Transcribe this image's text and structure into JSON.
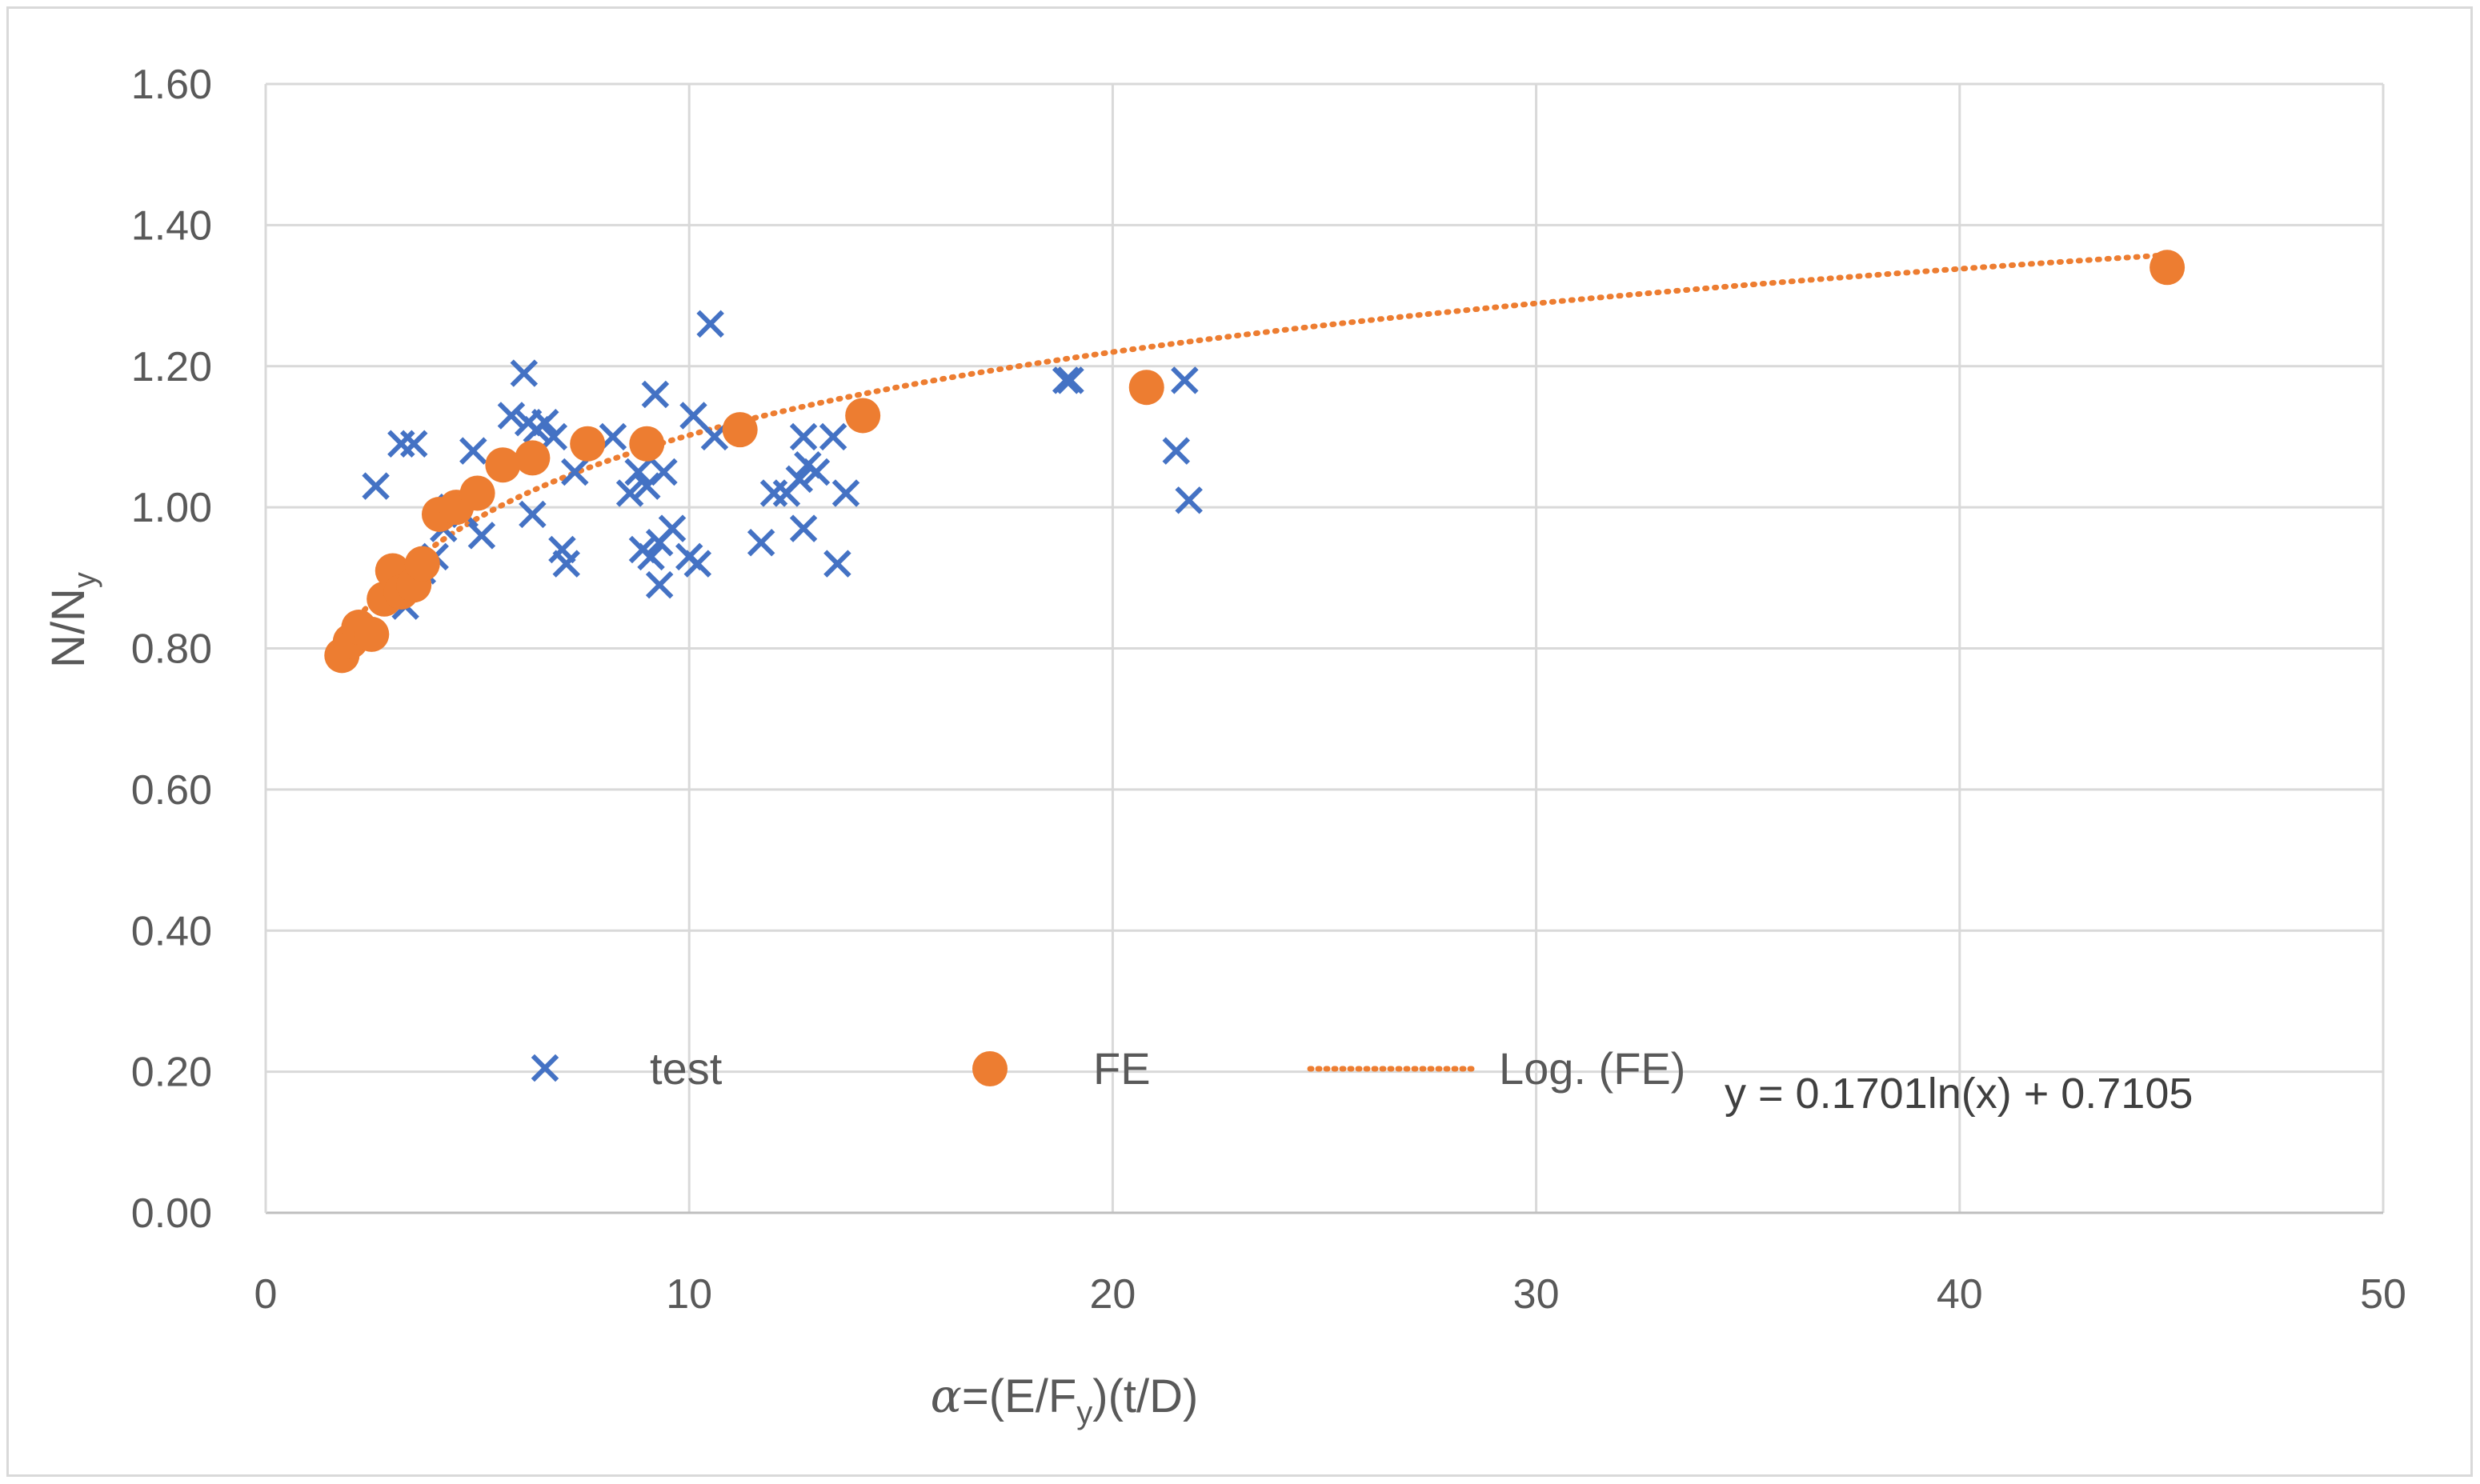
{
  "chart_data": {
    "type": "scatter",
    "title": "",
    "xlabel": {
      "greek": "α",
      "main": "=(E/F",
      "sub": "y",
      "rest": ")(t/D)"
    },
    "ylabel": {
      "main": "N/N",
      "sub": "y"
    },
    "xlim": [
      0,
      50
    ],
    "ylim": [
      0,
      1.6
    ],
    "x_ticks": [
      0,
      10,
      20,
      30,
      40,
      50
    ],
    "x_tick_labels": [
      "0",
      "10",
      "20",
      "30",
      "40",
      "50"
    ],
    "y_ticks": [
      0,
      0.2,
      0.4,
      0.6,
      0.8,
      1.0,
      1.2,
      1.4,
      1.6
    ],
    "y_tick_labels": [
      "0.00",
      "0.20",
      "0.40",
      "0.60",
      "0.80",
      "1.00",
      "1.20",
      "1.40",
      "1.60"
    ],
    "grid": true,
    "legend_position": "bottom-inside",
    "series": [
      {
        "name": "test",
        "marker": "x",
        "color": "#4472c4",
        "points": [
          [
            2.6,
            1.03
          ],
          [
            3.2,
            1.09
          ],
          [
            3.5,
            1.09
          ],
          [
            3.3,
            0.86
          ],
          [
            3.7,
            0.91
          ],
          [
            4.0,
            0.93
          ],
          [
            4.2,
            0.97
          ],
          [
            4.4,
            1.0
          ],
          [
            4.7,
            0.99
          ],
          [
            4.9,
            1.08
          ],
          [
            5.1,
            0.96
          ],
          [
            5.8,
            1.13
          ],
          [
            6.1,
            1.19
          ],
          [
            6.2,
            1.12
          ],
          [
            6.4,
            1.11
          ],
          [
            6.3,
            0.99
          ],
          [
            6.6,
            1.12
          ],
          [
            6.8,
            1.1
          ],
          [
            7.0,
            0.94
          ],
          [
            7.1,
            0.92
          ],
          [
            7.3,
            1.05
          ],
          [
            8.2,
            1.1
          ],
          [
            8.6,
            1.02
          ],
          [
            8.8,
            1.05
          ],
          [
            8.9,
            0.94
          ],
          [
            9.0,
            1.03
          ],
          [
            9.1,
            0.93
          ],
          [
            9.2,
            1.16
          ],
          [
            9.3,
            0.95
          ],
          [
            9.3,
            0.89
          ],
          [
            9.4,
            1.05
          ],
          [
            9.6,
            0.97
          ],
          [
            10.0,
            0.93
          ],
          [
            10.2,
            0.92
          ],
          [
            10.1,
            1.13
          ],
          [
            10.5,
            1.26
          ],
          [
            10.6,
            1.1
          ],
          [
            11.7,
            0.95
          ],
          [
            12.0,
            1.02
          ],
          [
            12.3,
            1.02
          ],
          [
            12.6,
            1.04
          ],
          [
            12.7,
            1.1
          ],
          [
            12.7,
            0.97
          ],
          [
            12.8,
            1.06
          ],
          [
            13.0,
            1.05
          ],
          [
            13.4,
            1.1
          ],
          [
            13.5,
            0.92
          ],
          [
            13.7,
            1.02
          ],
          [
            18.9,
            1.18
          ],
          [
            19.0,
            1.18
          ],
          [
            21.5,
            1.08
          ],
          [
            21.7,
            1.18
          ],
          [
            21.8,
            1.01
          ]
        ]
      },
      {
        "name": "FE",
        "marker": "circle",
        "color": "#ed7d31",
        "points": [
          [
            1.8,
            0.79
          ],
          [
            2.0,
            0.81
          ],
          [
            2.2,
            0.83
          ],
          [
            2.5,
            0.82
          ],
          [
            2.8,
            0.87
          ],
          [
            3.0,
            0.91
          ],
          [
            3.2,
            0.88
          ],
          [
            3.5,
            0.89
          ],
          [
            3.7,
            0.92
          ],
          [
            4.1,
            0.99
          ],
          [
            4.5,
            1.0
          ],
          [
            5.0,
            1.02
          ],
          [
            5.6,
            1.06
          ],
          [
            6.3,
            1.07
          ],
          [
            7.6,
            1.09
          ],
          [
            9.0,
            1.09
          ],
          [
            11.2,
            1.11
          ],
          [
            14.1,
            1.13
          ],
          [
            20.8,
            1.17
          ],
          [
            44.9,
            1.34
          ]
        ]
      },
      {
        "name": "Log. (FE)",
        "type": "trendline",
        "style": "dotted",
        "color": "#ed7d31",
        "a": 0.1701,
        "b": 0.7105,
        "x_range": [
          1.8,
          44.9
        ]
      }
    ],
    "annotations": {
      "equation": "y = 0.1701ln(x) + 0.7105"
    }
  }
}
